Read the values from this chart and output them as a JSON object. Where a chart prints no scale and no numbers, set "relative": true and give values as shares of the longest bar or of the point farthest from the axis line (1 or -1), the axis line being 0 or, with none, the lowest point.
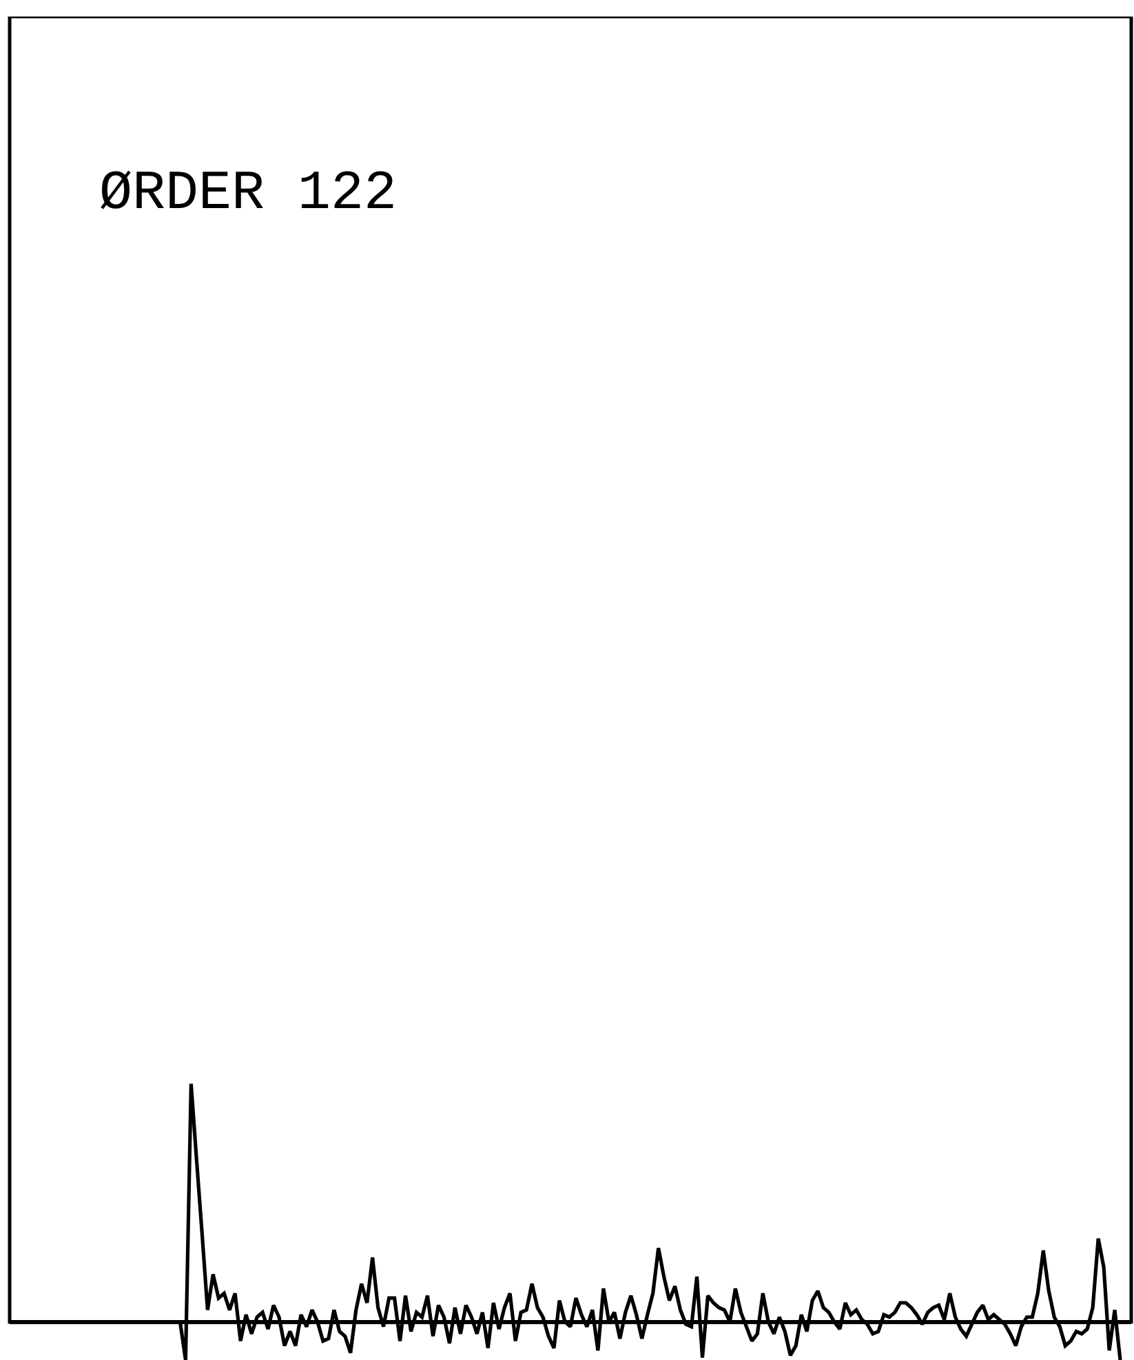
{
  "chart_data": {
    "type": "line",
    "title": "ØRDER 122",
    "relative": true,
    "categories": [
      null,
      null,
      null,
      null,
      null,
      null,
      null,
      null,
      null,
      null,
      null,
      null,
      null,
      null,
      null,
      null,
      null,
      null,
      null,
      null,
      null,
      null,
      null,
      null,
      null,
      null,
      null,
      null,
      null,
      null,
      null,
      null,
      null,
      null,
      null,
      null,
      null,
      null,
      null,
      null,
      null,
      null,
      null,
      null,
      null,
      null,
      null,
      null,
      null,
      null,
      null,
      null,
      null,
      null,
      null,
      null,
      null,
      null,
      null,
      null,
      null,
      null,
      null,
      null,
      null,
      null,
      null,
      null,
      null,
      null,
      null,
      null,
      null,
      null,
      null,
      null,
      null,
      null,
      null,
      null,
      null,
      null,
      null,
      null,
      null,
      null,
      null,
      null,
      null,
      null,
      null,
      null,
      null,
      null,
      null,
      null,
      null,
      null,
      null,
      null,
      null,
      null,
      null,
      null,
      null,
      null,
      null,
      null,
      null,
      null,
      null,
      null,
      null,
      null,
      null,
      null,
      null,
      null,
      null,
      null,
      null,
      null,
      null,
      null,
      null,
      null,
      null,
      null,
      null,
      null,
      null,
      null,
      null,
      null,
      null,
      null,
      null,
      null,
      null,
      null,
      null,
      null,
      null,
      null,
      null,
      null,
      null,
      null,
      null,
      null,
      null,
      null,
      null,
      null,
      null,
      null,
      null,
      null,
      null,
      null,
      null,
      null,
      null,
      null,
      null,
      null,
      null,
      null,
      null,
      null,
      null,
      null,
      null,
      null,
      null,
      null,
      null,
      null,
      null,
      null,
      null,
      null,
      null,
      null,
      null,
      null,
      null,
      null,
      null,
      null,
      null,
      null,
      null,
      null,
      null,
      null,
      null,
      null,
      null,
      null,
      null,
      null,
      null,
      null,
      null
    ],
    "series": [
      {
        "color": "#000000",
        "values": [
          null,
          null,
          null,
          null,
          null,
          null,
          null,
          null,
          null,
          null,
          null,
          null,
          null,
          null,
          null,
          null,
          null,
          null,
          null,
          null,
          null,
          null,
          null,
          null,
          null,
          null,
          null,
          null,
          null,
          null,
          null,
          0,
          -0.16,
          1.0,
          0.68,
          0.37,
          0.05,
          0.2,
          0.1,
          0.12,
          0.05,
          0.12,
          -0.08,
          0.03,
          -0.05,
          0.02,
          0.04,
          -0.03,
          0.07,
          0.02,
          -0.1,
          -0.04,
          -0.1,
          0.03,
          -0.02,
          0.05,
          0,
          -0.08,
          -0.07,
          0.05,
          -0.04,
          -0.06,
          -0.13,
          0.05,
          0.16,
          0.08,
          0.27,
          0.06,
          -0.02,
          0.1,
          0.1,
          -0.08,
          0.11,
          -0.04,
          0.04,
          0.02,
          0.11,
          -0.06,
          0.07,
          0.02,
          -0.09,
          0.06,
          -0.05,
          0.07,
          0.02,
          -0.05,
          0.04,
          -0.11,
          0.08,
          -0.03,
          0.06,
          0.12,
          -0.08,
          0.04,
          0.05,
          0.16,
          0.06,
          0.02,
          -0.06,
          -0.11,
          0.09,
          0,
          -0.02,
          0.1,
          0.03,
          -0.02,
          0.05,
          -0.12,
          0.14,
          0,
          0.04,
          -0.07,
          0.04,
          0.11,
          0.03,
          -0.07,
          0.03,
          0.12,
          0.31,
          0.19,
          0.09,
          0.15,
          0.05,
          -0.01,
          -0.02,
          0.19,
          -0.15,
          0.11,
          0.08,
          0.06,
          0.05,
          0,
          0.14,
          0.04,
          -0.02,
          -0.08,
          -0.05,
          0.12,
          0,
          -0.05,
          0.02,
          -0.04,
          -0.14,
          -0.1,
          0.03,
          -0.04,
          0.09,
          0.13,
          0.06,
          0.04,
          0,
          -0.03,
          0.08,
          0.03,
          0.05,
          0.01,
          -0.01,
          -0.05,
          -0.04,
          0.03,
          0.02,
          0.04,
          0.08,
          0.08,
          0.06,
          0.03,
          -0.01,
          0.04,
          0.06,
          0.07,
          0.01,
          0.12,
          0.02,
          -0.03,
          -0.06,
          -0.01,
          0.04,
          0.07,
          0.01,
          0.03,
          0.01,
          -0.01,
          -0.05,
          -0.1,
          -0.02,
          0.02,
          0.02,
          0.12,
          0.3,
          0.13,
          0.02,
          -0.02,
          -0.1,
          -0.08,
          -0.04,
          -0.05,
          -0.03,
          0.06,
          0.35,
          0.23,
          -0.12,
          0.05,
          -0.16,
          null,
          null
        ]
      }
    ]
  }
}
